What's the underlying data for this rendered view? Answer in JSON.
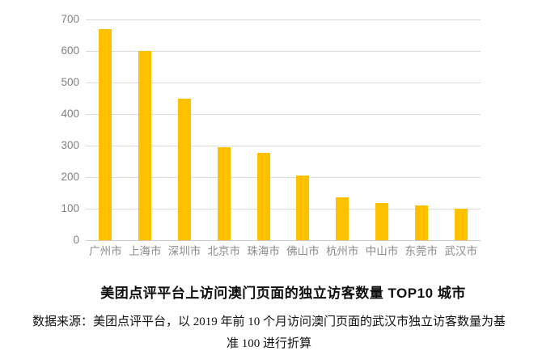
{
  "chart_data": {
    "type": "bar",
    "categories": [
      "广州市",
      "上海市",
      "深圳市",
      "北京市",
      "珠海市",
      "佛山市",
      "杭州市",
      "中山市",
      "东莞市",
      "武汉市"
    ],
    "values": [
      670,
      600,
      450,
      295,
      277,
      205,
      135,
      118,
      110,
      100
    ],
    "title": "美团点评平台上访问澳门页面的独立访客数量 TOP10 城市",
    "xlabel": "",
    "ylabel": "",
    "ylim": [
      0,
      700
    ],
    "yticks": [
      0,
      100,
      200,
      300,
      400,
      500,
      600,
      700
    ],
    "grid": true,
    "legend": "none",
    "bar_color": "#FFC000",
    "gridline_color": "#DCDCDC",
    "axis_line_color": "#C9C9C9",
    "tick_label_color": "#808080"
  },
  "source_note": {
    "line1": "数据来源：美团点评平台，以 2019 年前 10 个月访问澳门页面的武汉市独立访客数量为基",
    "line2": "准 100 进行折算"
  }
}
